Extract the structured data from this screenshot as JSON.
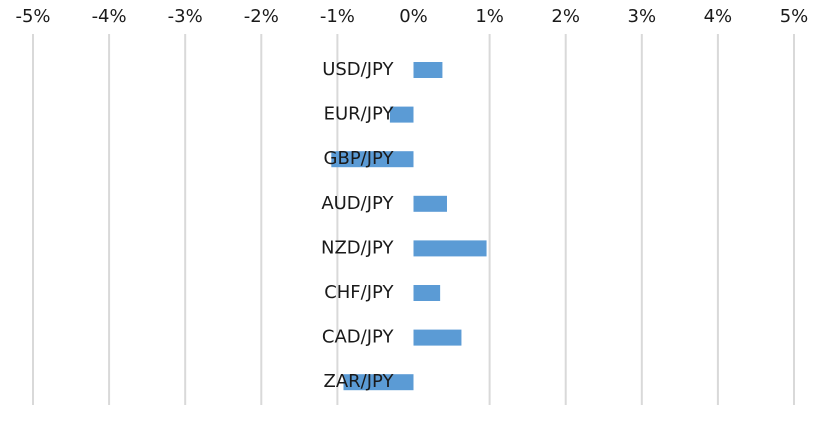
{
  "chart_data": {
    "type": "bar",
    "orientation": "horizontal",
    "title": "",
    "xlabel": "",
    "ylabel": "",
    "xlim": [
      -5,
      5
    ],
    "x_ticks": [
      -5,
      -4,
      -3,
      -2,
      -1,
      0,
      1,
      2,
      3,
      4,
      5
    ],
    "x_tick_labels": [
      "-5%",
      "-4%",
      "-3%",
      "-2%",
      "-1%",
      "0%",
      "1%",
      "2%",
      "3%",
      "4%",
      "5%"
    ],
    "x_axis_position": "top",
    "grid": "vertical",
    "legend": "none",
    "categories": [
      "USD/JPY",
      "EUR/JPY",
      "GBP/JPY",
      "AUD/JPY",
      "NZD/JPY",
      "CHF/JPY",
      "CAD/JPY",
      "ZAR/JPY"
    ],
    "values": [
      0.38,
      -0.31,
      -1.08,
      0.44,
      0.96,
      0.35,
      0.63,
      -0.92
    ],
    "unit": "%",
    "colors": {
      "bar": "#5b9bd5",
      "grid": "#d9d9d9",
      "text": "#1a1a1a"
    }
  }
}
